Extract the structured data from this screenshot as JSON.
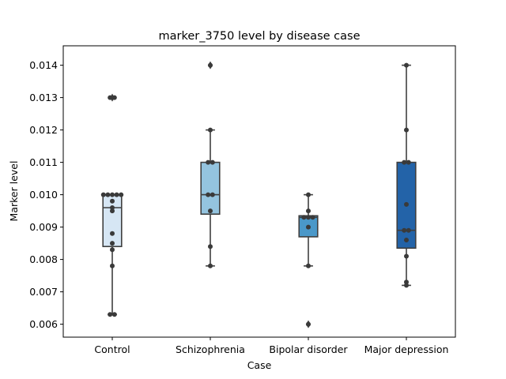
{
  "chart_data": {
    "type": "box",
    "title": "marker_3750 level by disease case",
    "xlabel": "Case",
    "ylabel": "Marker level",
    "categories": [
      "Control",
      "Schizophrenia",
      "Bipolar disorder",
      "Major depression"
    ],
    "colors": [
      "#d6e6f4",
      "#94c4df",
      "#4a98c9",
      "#2363a8"
    ],
    "ylim": [
      0.0056,
      0.0146
    ],
    "yticks": [
      0.006,
      0.007,
      0.008,
      0.009,
      0.01,
      0.011,
      0.012,
      0.013,
      0.014
    ],
    "ytick_labels": [
      "0.006",
      "0.007",
      "0.008",
      "0.009",
      "0.010",
      "0.011",
      "0.012",
      "0.013",
      "0.014"
    ],
    "grid": false,
    "boxes": [
      {
        "q1": 0.0084,
        "median": 0.0096,
        "q3": 0.01,
        "whisker_low": 0.0063,
        "whisker_high": 0.01,
        "fliers": [
          0.013
        ]
      },
      {
        "q1": 0.0094,
        "median": 0.01,
        "q3": 0.011,
        "whisker_low": 0.0078,
        "whisker_high": 0.012,
        "fliers": [
          0.014
        ]
      },
      {
        "q1": 0.0087,
        "median": 0.0093,
        "q3": 0.00935,
        "whisker_low": 0.0078,
        "whisker_high": 0.01,
        "fliers": [
          0.006
        ]
      },
      {
        "q1": 0.00835,
        "median": 0.0089,
        "q3": 0.011,
        "whisker_low": 0.0072,
        "whisker_high": 0.014,
        "fliers": []
      }
    ],
    "points": [
      [
        0.0063,
        0.0063,
        0.0078,
        0.0083,
        0.0085,
        0.0088,
        0.0095,
        0.0096,
        0.0098,
        0.01,
        0.01,
        0.01,
        0.01,
        0.01,
        0.013,
        0.013
      ],
      [
        0.0078,
        0.0084,
        0.0095,
        0.01,
        0.01,
        0.011,
        0.011,
        0.012,
        0.014
      ],
      [
        0.006,
        0.0078,
        0.009,
        0.0093,
        0.0093,
        0.0093,
        0.0095,
        0.01
      ],
      [
        0.0072,
        0.0073,
        0.0081,
        0.0086,
        0.0089,
        0.0089,
        0.0097,
        0.011,
        0.011,
        0.012,
        0.014
      ]
    ]
  }
}
